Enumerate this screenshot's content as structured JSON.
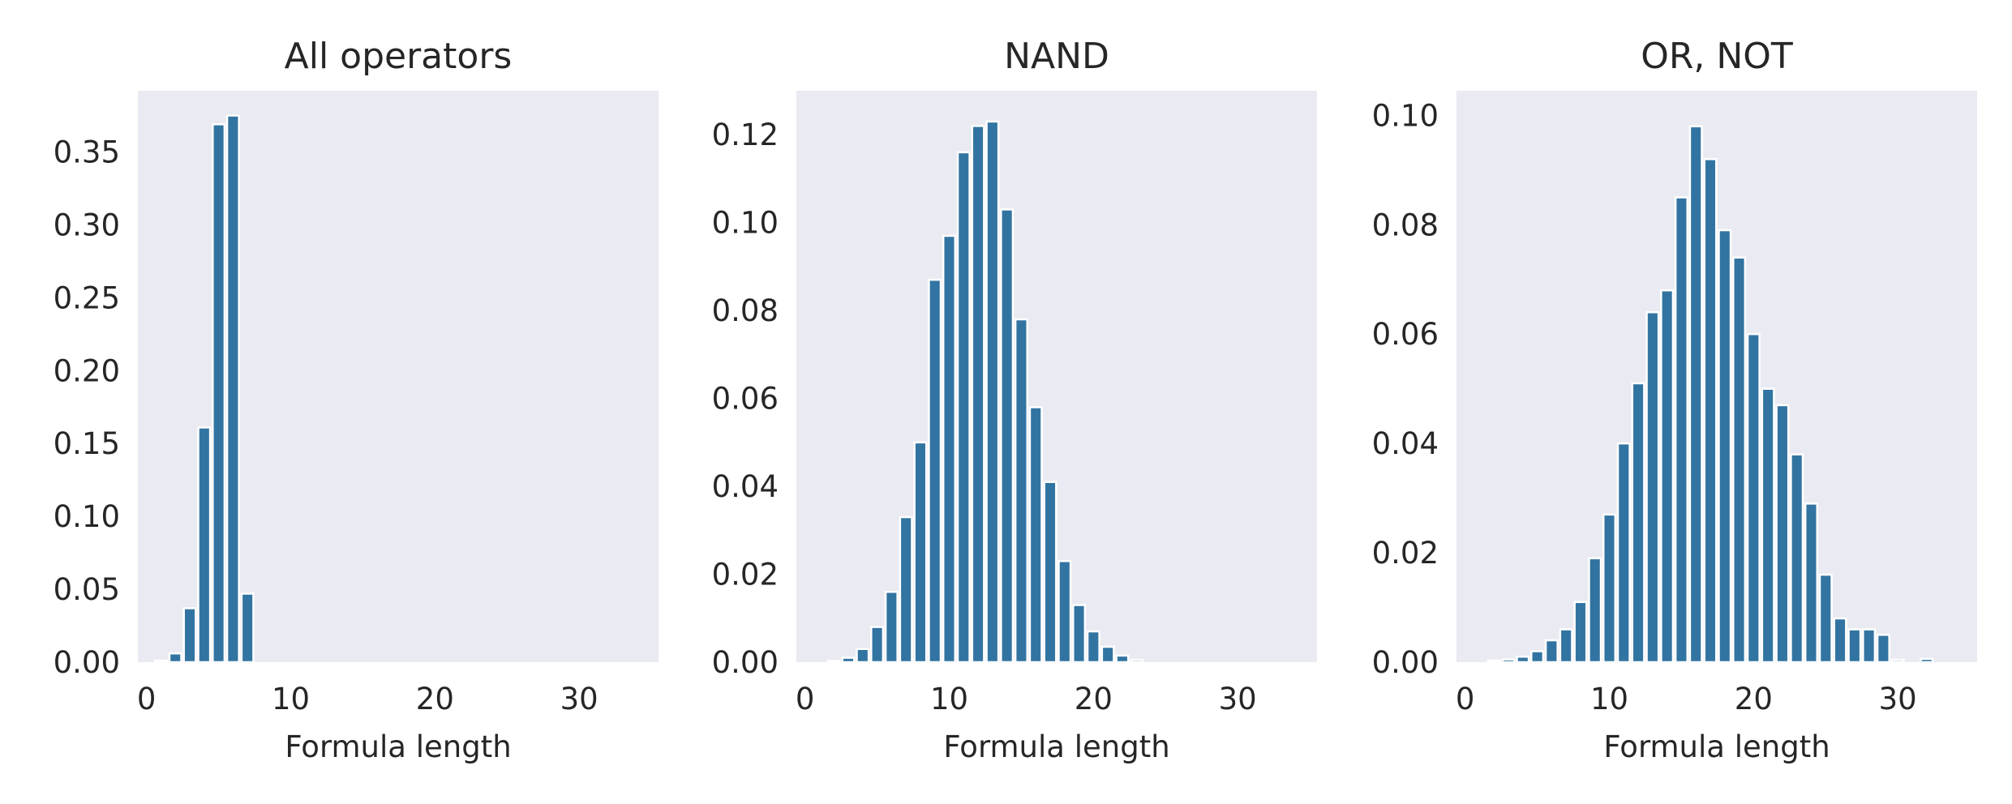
{
  "chart_data": [
    {
      "type": "bar",
      "title": "All operators",
      "xlabel": "Formula length",
      "ylabel": "",
      "xlim": [
        -0.6,
        35.5
      ],
      "ylim": [
        0,
        0.392
      ],
      "xticks": [
        0,
        10,
        20,
        30
      ],
      "yticks": [
        0.0,
        0.05,
        0.1,
        0.15,
        0.2,
        0.25,
        0.3,
        0.35
      ],
      "ytick_decimals": 2,
      "grid": false,
      "bar_color": "#3274a1",
      "background": "#eaeaf2",
      "x": [
        1,
        2,
        3,
        4,
        5,
        6,
        7
      ],
      "values": [
        0.001,
        0.006,
        0.037,
        0.161,
        0.369,
        0.375,
        0.047
      ]
    },
    {
      "type": "bar",
      "title": "NAND",
      "xlabel": "Formula length",
      "ylabel": "",
      "xlim": [
        -0.6,
        35.5
      ],
      "ylim": [
        0,
        0.13
      ],
      "xticks": [
        0,
        10,
        20,
        30
      ],
      "yticks": [
        0.0,
        0.02,
        0.04,
        0.06,
        0.08,
        0.1,
        0.12
      ],
      "ytick_decimals": 2,
      "grid": false,
      "bar_color": "#3274a1",
      "background": "#eaeaf2",
      "x": [
        2,
        3,
        4,
        5,
        6,
        7,
        8,
        9,
        10,
        11,
        12,
        13,
        14,
        15,
        16,
        17,
        18,
        19,
        20,
        21,
        22,
        23
      ],
      "values": [
        0.0003,
        0.001,
        0.003,
        0.008,
        0.016,
        0.033,
        0.05,
        0.087,
        0.097,
        0.116,
        0.122,
        0.123,
        0.103,
        0.078,
        0.058,
        0.041,
        0.023,
        0.013,
        0.007,
        0.0035,
        0.0015,
        0.0005
      ]
    },
    {
      "type": "bar",
      "title": "OR, NOT",
      "xlabel": "Formula length",
      "ylabel": "",
      "xlim": [
        -0.6,
        35.5
      ],
      "ylim": [
        0,
        0.1045
      ],
      "xticks": [
        0,
        10,
        20,
        30
      ],
      "yticks": [
        0.0,
        0.02,
        0.04,
        0.06,
        0.08,
        0.1
      ],
      "ytick_decimals": 2,
      "grid": false,
      "bar_color": "#3274a1",
      "background": "#eaeaf2",
      "x": [
        2,
        3,
        4,
        5,
        6,
        7,
        8,
        9,
        10,
        11,
        12,
        13,
        14,
        15,
        16,
        17,
        18,
        19,
        20,
        21,
        22,
        23,
        24,
        25,
        26,
        27,
        28,
        29,
        30,
        32
      ],
      "values": [
        0.0003,
        0.0005,
        0.001,
        0.002,
        0.004,
        0.006,
        0.011,
        0.019,
        0.027,
        0.04,
        0.051,
        0.064,
        0.068,
        0.085,
        0.098,
        0.092,
        0.079,
        0.074,
        0.06,
        0.05,
        0.047,
        0.038,
        0.029,
        0.016,
        0.008,
        0.006,
        0.006,
        0.005,
        0.0004,
        0.0006
      ]
    }
  ]
}
